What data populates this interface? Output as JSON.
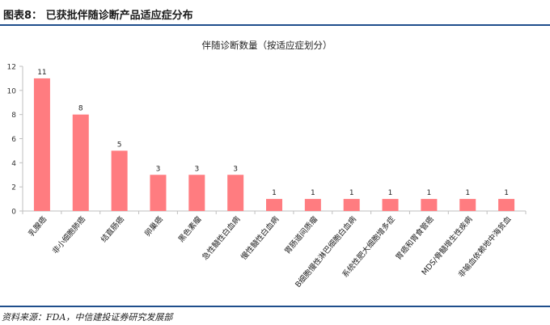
{
  "figure": {
    "label": "图表8：",
    "title": "已获批伴随诊断产品适应症分布",
    "source": "资料来源：FDA，中信建投证券研究发展部"
  },
  "colors": {
    "bar": "#ff7c80",
    "rule": "#1f4e8c",
    "axis": "#bfbfbf"
  },
  "chart_data": {
    "type": "bar",
    "title": "伴随诊断数量（按适应症划分）",
    "xlabel": "",
    "ylabel": "",
    "ylim": [
      0,
      12
    ],
    "yticks": [
      0,
      2,
      4,
      6,
      8,
      10,
      12
    ],
    "grid": false,
    "legend": "none",
    "categories": [
      "乳腺癌",
      "非小细胞肺癌",
      "结直肠癌",
      "卵巢癌",
      "黑色素瘤",
      "急性髓性白血病",
      "慢性髓性白血病",
      "胃肠道间质瘤",
      "B细胞慢性淋巴细胞白血病",
      "系统性肥大细胞增多症",
      "胃癌和胃食管癌",
      "MDS/骨髓增生性疾病",
      "非输血依赖地中海贫血"
    ],
    "values": [
      11,
      8,
      5,
      3,
      3,
      3,
      1,
      1,
      1,
      1,
      1,
      1,
      1
    ]
  }
}
